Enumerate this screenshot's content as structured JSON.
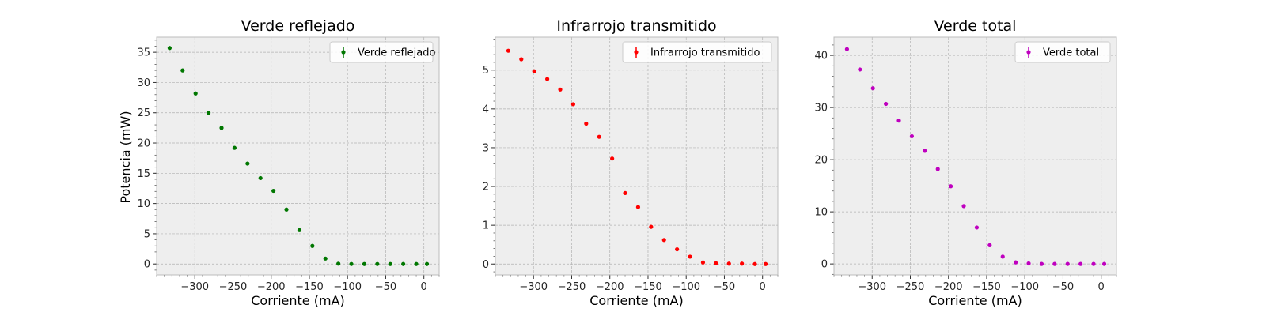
{
  "figure": {
    "ylabel": "Potencia (mW)"
  },
  "chart_data": [
    {
      "type": "scatter",
      "title": "Verde reflejado",
      "xlabel": "Corriente (mA)",
      "ylabel": "Potencia (mW)",
      "xlim": [
        -350,
        20
      ],
      "ylim": [
        -1.8,
        37.5
      ],
      "xticks": [
        -300,
        -250,
        -200,
        -150,
        -100,
        -50,
        0
      ],
      "xtick_labels": [
        "−300",
        "−250",
        "−200",
        "−150",
        "−100",
        "−50",
        "0"
      ],
      "yticks": [
        0,
        5,
        10,
        15,
        20,
        25,
        30,
        35
      ],
      "ytick_labels": [
        "0",
        "5",
        "10",
        "15",
        "20",
        "25",
        "30",
        "35"
      ],
      "grid": true,
      "legend_position": "top-right",
      "series": [
        {
          "name": "Verde reflejado",
          "color": "#007700",
          "x": [
            -333,
            -316,
            -299,
            -282,
            -265,
            -248,
            -231,
            -214,
            -197,
            -180,
            -163,
            -146,
            -129,
            -112,
            -95,
            -78,
            -61,
            -44,
            -27,
            -10,
            4
          ],
          "y": [
            35.7,
            32.0,
            28.2,
            25.0,
            22.5,
            19.2,
            16.6,
            14.2,
            12.1,
            9.0,
            5.6,
            3.0,
            0.9,
            0.05,
            0.0,
            0.0,
            0.0,
            0.0,
            0.0,
            0.0,
            0.0
          ]
        }
      ]
    },
    {
      "type": "scatter",
      "title": "Infrarrojo transmitido",
      "xlabel": "Corriente (mA)",
      "ylabel": "",
      "xlim": [
        -350,
        20
      ],
      "ylim": [
        -0.28,
        5.85
      ],
      "xticks": [
        -300,
        -250,
        -200,
        -150,
        -100,
        -50,
        0
      ],
      "xtick_labels": [
        "−300",
        "−250",
        "−200",
        "−150",
        "−100",
        "−50",
        "0"
      ],
      "yticks": [
        0,
        1,
        2,
        3,
        4,
        5
      ],
      "ytick_labels": [
        "0",
        "1",
        "2",
        "3",
        "4",
        "5"
      ],
      "grid": true,
      "legend_position": "top-right",
      "series": [
        {
          "name": "Infrarrojo transmitido",
          "color": "#ff0000",
          "x": [
            -333,
            -316,
            -299,
            -282,
            -265,
            -248,
            -231,
            -214,
            -197,
            -180,
            -163,
            -146,
            -129,
            -112,
            -95,
            -78,
            -61,
            -44,
            -27,
            -10,
            4
          ],
          "y": [
            5.5,
            5.28,
            4.97,
            4.77,
            4.5,
            4.12,
            3.62,
            3.28,
            2.72,
            1.83,
            1.47,
            0.96,
            0.62,
            0.38,
            0.19,
            0.04,
            0.02,
            0.01,
            0.01,
            0.0,
            0.0
          ]
        }
      ]
    },
    {
      "type": "scatter",
      "title": "Verde total",
      "xlabel": "Corriente (mA)",
      "ylabel": "",
      "xlim": [
        -350,
        20
      ],
      "ylim": [
        -2.1,
        43.5
      ],
      "xticks": [
        -300,
        -250,
        -200,
        -150,
        -100,
        -50,
        0
      ],
      "xtick_labels": [
        "−300",
        "−250",
        "−200",
        "−150",
        "−100",
        "−50",
        "0"
      ],
      "yticks": [
        0,
        10,
        20,
        30,
        40
      ],
      "ytick_labels": [
        "0",
        "10",
        "20",
        "30",
        "40"
      ],
      "grid": true,
      "legend_position": "top-right",
      "series": [
        {
          "name": "Verde total",
          "color": "#bf00bf",
          "x": [
            -333,
            -316,
            -299,
            -282,
            -265,
            -248,
            -231,
            -214,
            -197,
            -180,
            -163,
            -146,
            -129,
            -112,
            -95,
            -78,
            -61,
            -44,
            -27,
            -10,
            4
          ],
          "y": [
            41.2,
            37.3,
            33.7,
            30.7,
            27.5,
            24.5,
            21.7,
            18.2,
            14.9,
            11.1,
            7.0,
            3.6,
            1.4,
            0.3,
            0.1,
            0.0,
            0.0,
            0.0,
            0.0,
            0.0,
            0.0
          ]
        }
      ]
    }
  ]
}
